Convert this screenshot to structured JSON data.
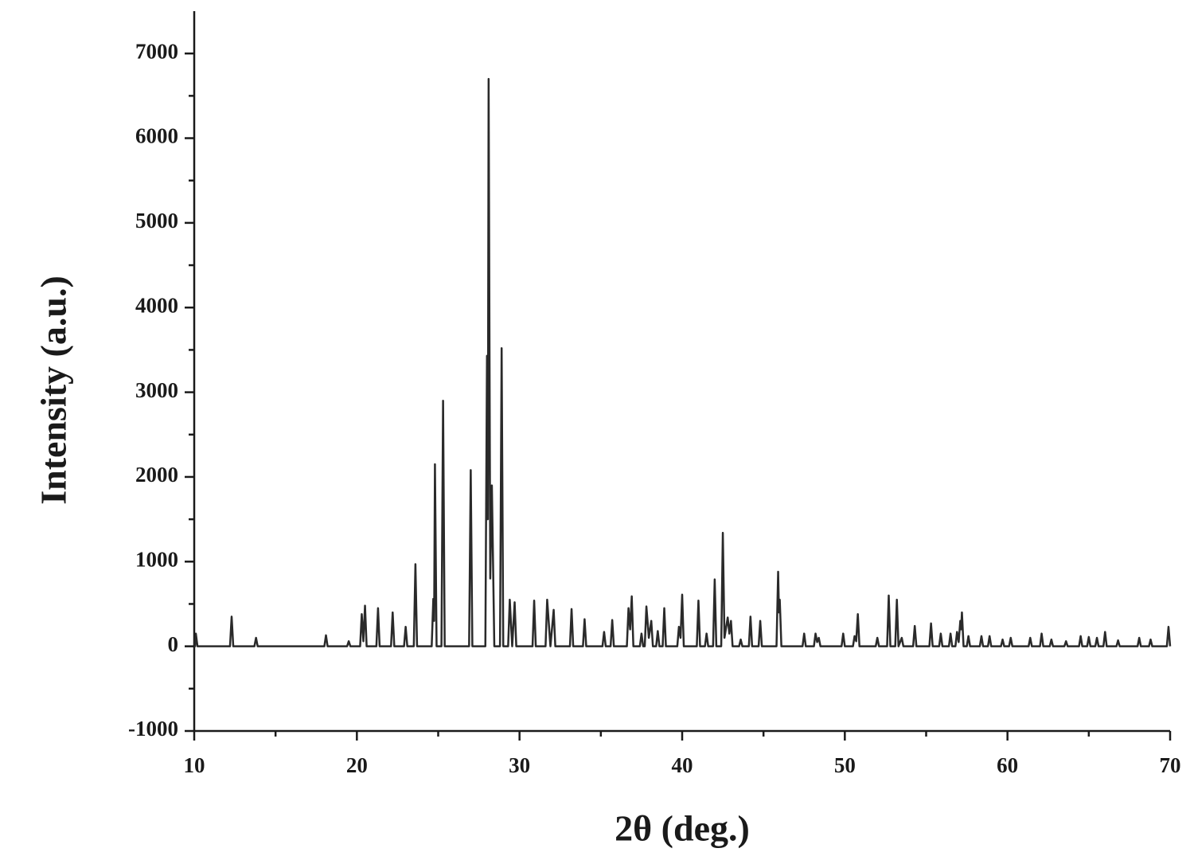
{
  "chart_data": {
    "type": "line",
    "x_label": "2θ (deg.)",
    "y_label": "Intensity (a.u.)",
    "color": "#2a2a2a",
    "xlim": [
      10,
      70
    ],
    "ylim": [
      -1000,
      7500
    ],
    "xticks": [
      10,
      20,
      30,
      40,
      50,
      60,
      70
    ],
    "yticks": [
      -1000,
      0,
      1000,
      2000,
      3000,
      4000,
      5000,
      6000,
      7000
    ],
    "xminor": [
      15,
      25,
      35,
      45,
      55,
      65
    ],
    "yminor": [
      -500,
      500,
      1500,
      2500,
      3500,
      4500,
      5500,
      6500
    ],
    "x": [
      10,
      10.05,
      10.1,
      10.2,
      12.2,
      12.3,
      12.4,
      13.7,
      13.8,
      13.9,
      18.0,
      18.1,
      18.2,
      19.4,
      19.5,
      19.6,
      20.2,
      20.3,
      20.4,
      20.5,
      20.6,
      21.2,
      21.3,
      21.4,
      22.1,
      22.2,
      22.3,
      22.9,
      23.0,
      23.1,
      23.5,
      23.6,
      23.7,
      24.6,
      24.7,
      24.75,
      24.8,
      24.9,
      25.2,
      25.3,
      25.4,
      26.9,
      27.0,
      27.1,
      27.9,
      28.0,
      28.05,
      28.1,
      28.2,
      28.3,
      28.45,
      28.8,
      28.9,
      29.0,
      29.3,
      29.4,
      29.55,
      29.7,
      29.8,
      30.8,
      30.9,
      31.0,
      31.6,
      31.7,
      31.9,
      32.1,
      32.2,
      33.1,
      33.2,
      33.3,
      33.9,
      34.0,
      34.1,
      35.1,
      35.2,
      35.3,
      35.6,
      35.7,
      35.8,
      36.6,
      36.7,
      36.8,
      36.9,
      37.0,
      37.4,
      37.5,
      37.6,
      37.7,
      37.8,
      37.95,
      38.1,
      38.2,
      38.4,
      38.5,
      38.6,
      38.8,
      38.9,
      39.0,
      39.7,
      39.8,
      39.9,
      40.0,
      40.1,
      40.9,
      41.0,
      41.1,
      41.4,
      41.5,
      41.6,
      41.9,
      42.0,
      42.1,
      42.4,
      42.5,
      42.6,
      42.8,
      42.9,
      43.0,
      43.1,
      43.5,
      43.6,
      43.7,
      44.1,
      44.2,
      44.3,
      44.7,
      44.8,
      44.9,
      45.8,
      45.9,
      45.95,
      46.0,
      46.1,
      47.4,
      47.5,
      47.6,
      48.1,
      48.2,
      48.3,
      48.4,
      48.5,
      49.8,
      49.9,
      50.0,
      50.5,
      50.6,
      50.7,
      50.8,
      50.9,
      51.9,
      52.0,
      52.1,
      52.6,
      52.7,
      52.8,
      53.1,
      53.2,
      53.3,
      53.5,
      53.6,
      54.2,
      54.3,
      54.4,
      55.2,
      55.3,
      55.4,
      55.8,
      55.9,
      56.0,
      56.4,
      56.5,
      56.6,
      56.8,
      56.9,
      57.0,
      57.1,
      57.15,
      57.2,
      57.3,
      57.5,
      57.6,
      57.7,
      58.3,
      58.4,
      58.5,
      58.8,
      58.9,
      59.0,
      59.6,
      59.7,
      59.8,
      60.1,
      60.2,
      60.3,
      61.3,
      61.4,
      61.5,
      62.0,
      62.1,
      62.2,
      62.6,
      62.7,
      62.8,
      63.5,
      63.6,
      63.7,
      64.4,
      64.5,
      64.6,
      64.9,
      65.0,
      65.1,
      65.4,
      65.5,
      65.6,
      65.9,
      66.0,
      66.1,
      66.7,
      66.8,
      66.9,
      68.0,
      68.1,
      68.2,
      68.7,
      68.8,
      68.9,
      69.8,
      69.9,
      70
    ],
    "values": [
      0,
      0,
      150,
      0,
      0,
      350,
      0,
      0,
      100,
      0,
      0,
      130,
      0,
      0,
      60,
      0,
      0,
      380,
      60,
      480,
      0,
      0,
      450,
      0,
      0,
      400,
      0,
      0,
      230,
      0,
      0,
      970,
      0,
      0,
      560,
      300,
      2150,
      0,
      0,
      2900,
      0,
      0,
      2080,
      0,
      0,
      3430,
      1500,
      6700,
      800,
      1900,
      0,
      0,
      3520,
      0,
      0,
      550,
      0,
      520,
      0,
      0,
      540,
      0,
      0,
      550,
      0,
      430,
      0,
      0,
      440,
      0,
      0,
      320,
      0,
      0,
      170,
      0,
      0,
      310,
      0,
      0,
      450,
      200,
      590,
      0,
      0,
      150,
      0,
      0,
      470,
      100,
      300,
      0,
      0,
      180,
      0,
      0,
      450,
      0,
      0,
      230,
      100,
      610,
      0,
      0,
      540,
      0,
      0,
      150,
      0,
      0,
      790,
      0,
      0,
      1340,
      100,
      340,
      150,
      300,
      0,
      0,
      80,
      0,
      0,
      350,
      0,
      0,
      300,
      0,
      0,
      880,
      400,
      550,
      0,
      0,
      150,
      0,
      0,
      150,
      50,
      100,
      0,
      0,
      150,
      0,
      0,
      120,
      60,
      380,
      0,
      0,
      100,
      0,
      0,
      600,
      0,
      0,
      550,
      0,
      100,
      0,
      0,
      240,
      0,
      0,
      270,
      0,
      0,
      150,
      0,
      0,
      150,
      0,
      0,
      170,
      50,
      300,
      200,
      400,
      0,
      0,
      120,
      0,
      0,
      120,
      0,
      0,
      120,
      0,
      0,
      80,
      0,
      0,
      100,
      0,
      0,
      100,
      0,
      0,
      150,
      0,
      0,
      80,
      0,
      0,
      60,
      0,
      0,
      120,
      0,
      0,
      110,
      0,
      0,
      100,
      0,
      0,
      170,
      0,
      0,
      70,
      0,
      0,
      100,
      0,
      0,
      80,
      0,
      0,
      230,
      0
    ]
  }
}
